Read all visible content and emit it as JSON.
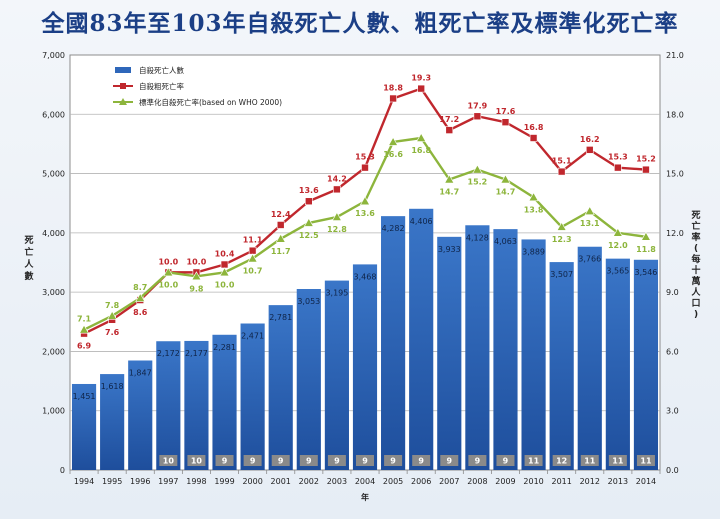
{
  "title": "全國83年至103年自殺死亡人數、粗死亡率及標準化死亡率",
  "chart_data": {
    "type": "bar",
    "categories": [
      "1994",
      "1995",
      "1996",
      "1997",
      "1998",
      "1999",
      "2000",
      "2001",
      "2002",
      "2003",
      "2004",
      "2005",
      "2006",
      "2007",
      "2008",
      "2009",
      "2010",
      "2011",
      "2012",
      "2013",
      "2014"
    ],
    "xlabel": "年",
    "ylabel_left": "死亡人數",
    "ylabel_right": "死亡率(每十萬人口)",
    "ylim_left": [
      0,
      7000
    ],
    "ylim_right": [
      0,
      21
    ],
    "yticks_left": [
      "0",
      "1,000",
      "2,000",
      "3,000",
      "4,000",
      "5,000",
      "6,000",
      "7,000"
    ],
    "yticks_right": [
      "0.0",
      "3.0",
      "6.0",
      "9.0",
      "12.0",
      "15.0",
      "18.0",
      "21.0"
    ],
    "grid": true,
    "legend_position": "top-left",
    "series": [
      {
        "name": "自殺死亡人數",
        "kind": "bar",
        "axis": "left",
        "color": "#2f67ba",
        "values": [
          1451,
          1618,
          1847,
          2172,
          2177,
          2281,
          2471,
          2781,
          3053,
          3195,
          3468,
          4282,
          4406,
          3933,
          4128,
          4063,
          3889,
          3507,
          3766,
          3565,
          3546
        ],
        "labels": [
          "1,451",
          "1,618",
          "1,847",
          "2,172",
          "2,177",
          "2,281",
          "2,471",
          "2,781",
          "3,053",
          "3,195",
          "3,468",
          "4,282",
          "4,406",
          "3,933",
          "4,128",
          "4,063",
          "3,889",
          "3,507",
          "3,766",
          "3,565",
          "3,546"
        ]
      },
      {
        "name": "自殺粗死亡率",
        "kind": "line",
        "axis": "right",
        "color": "#c0272d",
        "marker": "square",
        "values": [
          6.9,
          7.6,
          8.6,
          10.0,
          10.0,
          10.4,
          11.1,
          12.4,
          13.6,
          14.2,
          15.3,
          18.8,
          19.3,
          17.2,
          17.9,
          17.6,
          16.8,
          15.1,
          16.2,
          15.3,
          15.2
        ],
        "labels": [
          "6.9",
          "7.6",
          "8.6",
          "10.0",
          "10.0",
          "10.4",
          "11.1",
          "12.4",
          "13.6",
          "14.2",
          "15.3",
          "18.8",
          "19.3",
          "17.2",
          "17.9",
          "17.6",
          "16.8",
          "15.1",
          "16.2",
          "15.3",
          "15.2"
        ]
      },
      {
        "name": "標準化自殺死亡率(based on WHO 2000)",
        "kind": "line",
        "axis": "right",
        "color": "#8db53c",
        "marker": "triangle",
        "values": [
          7.1,
          7.8,
          8.7,
          10.0,
          9.8,
          10.0,
          10.7,
          11.7,
          12.5,
          12.8,
          13.6,
          16.6,
          16.8,
          14.7,
          15.2,
          14.7,
          13.8,
          12.3,
          13.1,
          12.0,
          11.8
        ],
        "labels": [
          "7.1",
          "7.8",
          "8.7",
          "10.0",
          "9.8",
          "10.0",
          "10.7",
          "11.7",
          "12.5",
          "12.8",
          "13.6",
          "16.6",
          "16.8",
          "14.7",
          "15.2",
          "14.7",
          "13.8",
          "12.3",
          "13.1",
          "12.0",
          "11.8"
        ]
      }
    ],
    "rank_badges": [
      "",
      "",
      "",
      "10",
      "10",
      "9",
      "9",
      "9",
      "9",
      "9",
      "9",
      "9",
      "9",
      "9",
      "9",
      "9",
      "11",
      "12",
      "11",
      "11",
      "11"
    ],
    "rank_badge_color": "#8a8a8a"
  }
}
